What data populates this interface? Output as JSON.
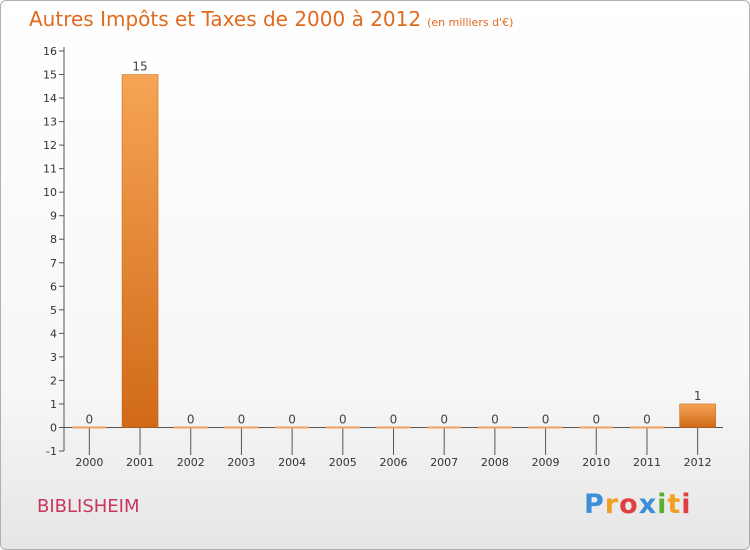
{
  "chart_data": {
    "type": "bar",
    "title": "Autres Impôts et Taxes de 2000 à 2012",
    "subtitle": "(en milliers d'€)",
    "categories": [
      "2000",
      "2001",
      "2002",
      "2003",
      "2004",
      "2005",
      "2006",
      "2007",
      "2008",
      "2009",
      "2010",
      "2011",
      "2012"
    ],
    "values": [
      0,
      15,
      0,
      0,
      0,
      0,
      0,
      0,
      0,
      0,
      0,
      0,
      1
    ],
    "ylim": [
      -1,
      16
    ],
    "yticks": [
      -1,
      0,
      1,
      2,
      3,
      4,
      5,
      6,
      7,
      8,
      9,
      10,
      11,
      12,
      13,
      14,
      15,
      16
    ],
    "grid": false,
    "legend": "none",
    "bar_color": "#e8822e",
    "xlabel": "",
    "ylabel": ""
  },
  "location": "BIBLISHEIM",
  "logo": {
    "letters": [
      "P",
      "r",
      "o",
      "x",
      "i",
      "t",
      "i"
    ],
    "colors": [
      "#3b8ed8",
      "#f0a020",
      "#e04040",
      "#3b8ed8",
      "#5cb030",
      "#f0a020",
      "#e04040"
    ]
  }
}
